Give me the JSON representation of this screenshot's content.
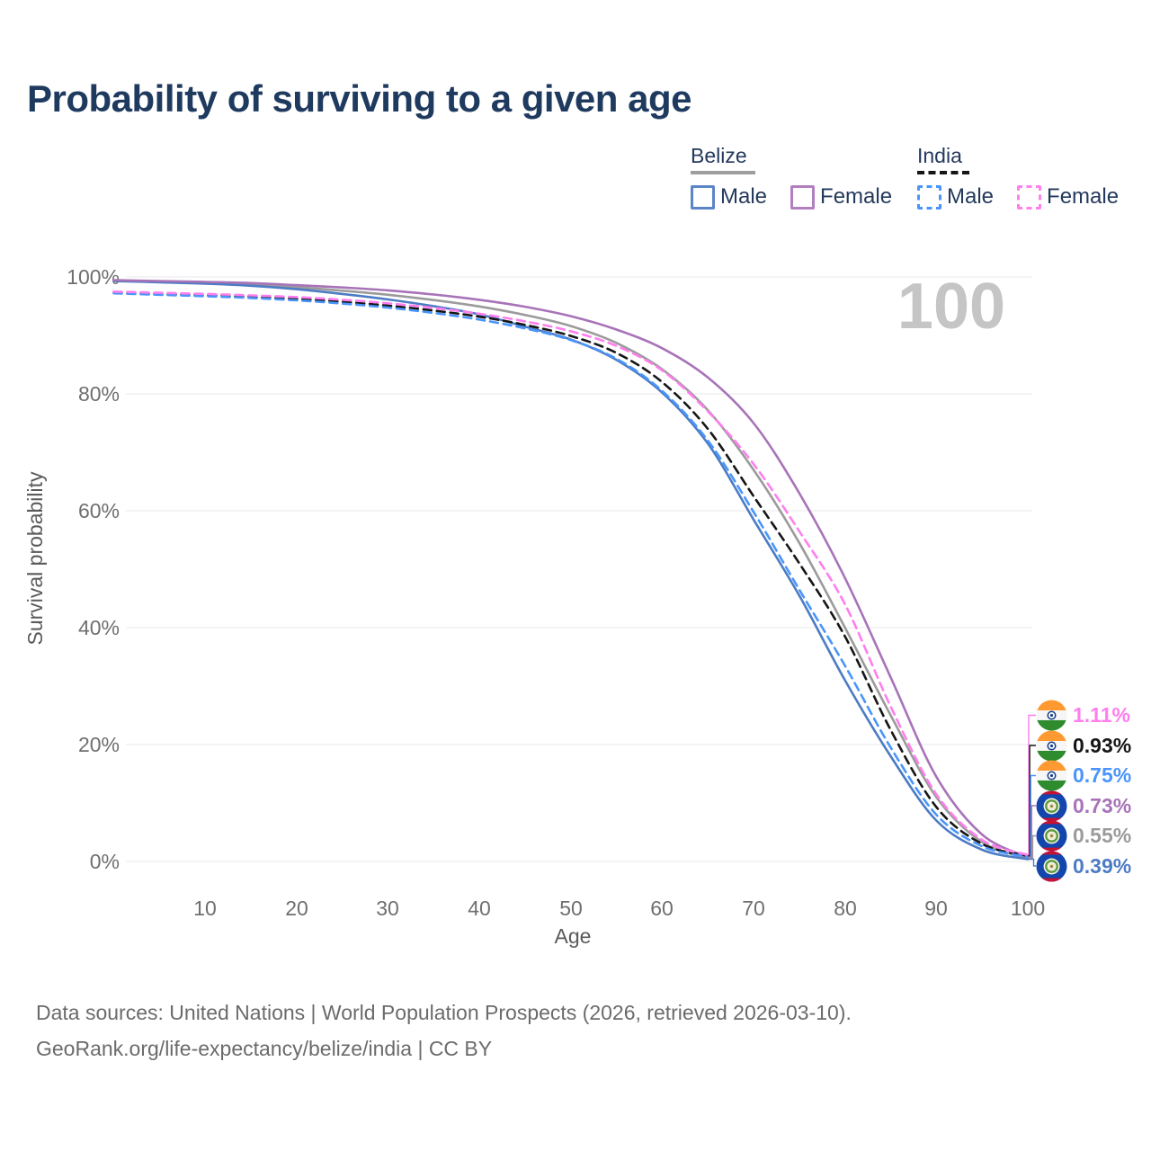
{
  "header": {
    "title": "Probability of surviving to a given age"
  },
  "legend": {
    "groups": [
      {
        "name": "Belize",
        "underline_color": "#9e9e9e",
        "underline_style": "solid",
        "items": [
          {
            "label": "Male",
            "color": "#4c7cc4",
            "dashed": false
          },
          {
            "label": "Female",
            "color": "#a873b8",
            "dashed": false
          }
        ]
      },
      {
        "name": "India",
        "underline_color": "#161616",
        "underline_style": "dashed",
        "items": [
          {
            "label": "Male",
            "color": "#4a95fb",
            "dashed": true
          },
          {
            "label": "Female",
            "color": "#ff80ee",
            "dashed": true
          }
        ]
      }
    ]
  },
  "watermark": "100",
  "axes": {
    "y_title": "Survival probability",
    "x_title": "Age",
    "y_ticks": [
      "100%",
      "80%",
      "60%",
      "40%",
      "20%",
      "0%"
    ],
    "x_ticks": [
      "10",
      "20",
      "30",
      "40",
      "50",
      "60",
      "70",
      "80",
      "90",
      "100"
    ]
  },
  "end_labels": [
    {
      "country": "India",
      "flag": "india",
      "series": "India Female",
      "value": "1.11%",
      "color": "#ff7eee"
    },
    {
      "country": "India",
      "flag": "india",
      "series": "India Total",
      "value": "0.93%",
      "color": "#161616"
    },
    {
      "country": "India",
      "flag": "india",
      "series": "India Male",
      "value": "0.75%",
      "color": "#4a95fb"
    },
    {
      "country": "Belize",
      "flag": "belize",
      "series": "Belize Female",
      "value": "0.73%",
      "color": "#a873b8"
    },
    {
      "country": "Belize",
      "flag": "belize",
      "series": "Belize Total",
      "value": "0.55%",
      "color": "#9b9b9b"
    },
    {
      "country": "Belize",
      "flag": "belize",
      "series": "Belize Male",
      "value": "0.39%",
      "color": "#4c7cc4"
    }
  ],
  "footer": {
    "line1": "Data sources: United Nations | World Population Prospects (2026, retrieved 2026-03-10).",
    "line2": "GeoRank.org/life-expectancy/belize/india | CC BY"
  },
  "chart_data": {
    "type": "line",
    "title": "Probability of surviving to a given age",
    "xlabel": "Age",
    "ylabel": "Survival probability",
    "xlim": [
      0,
      100
    ],
    "ylim": [
      0,
      100
    ],
    "y_unit": "%",
    "grid": "horizontal",
    "legend_position": "top-right",
    "x": [
      0,
      5,
      10,
      15,
      20,
      25,
      30,
      35,
      40,
      45,
      50,
      55,
      60,
      65,
      70,
      75,
      80,
      85,
      90,
      95,
      100
    ],
    "series": [
      {
        "name": "Belize Total",
        "country": "Belize",
        "color": "#9b9b9b",
        "dash": false,
        "values": [
          99.37,
          99.2,
          99.0,
          98.7,
          98.25,
          97.65,
          96.95,
          96.05,
          94.95,
          93.5,
          91.6,
          88.7,
          84.2,
          77.2,
          67.0,
          54.5,
          40.0,
          25.0,
          11.0,
          3.3,
          0.55
        ]
      },
      {
        "name": "Belize Male",
        "country": "Belize",
        "color": "#4c7cc4",
        "dash": false,
        "values": [
          99.3,
          99.1,
          98.85,
          98.5,
          97.9,
          97.1,
          96.15,
          95.0,
          93.6,
          91.5,
          89.3,
          85.8,
          80.2,
          71.5,
          58.5,
          45.5,
          31.0,
          18.0,
          7.0,
          2.0,
          0.39
        ]
      },
      {
        "name": "Belize Female",
        "country": "Belize",
        "color": "#a873b8",
        "dash": false,
        "values": [
          99.45,
          99.3,
          99.15,
          98.95,
          98.6,
          98.2,
          97.7,
          97.0,
          96.1,
          94.9,
          93.3,
          91.0,
          87.8,
          82.8,
          75.0,
          63.0,
          48.5,
          31.5,
          14.5,
          4.6,
          0.73
        ]
      },
      {
        "name": "India Total",
        "country": "India",
        "color": "#161616",
        "dash": true,
        "values": [
          97.35,
          97.1,
          96.9,
          96.6,
          96.25,
          95.75,
          95.1,
          94.25,
          93.2,
          91.8,
          89.9,
          87.0,
          82.0,
          74.0,
          62.5,
          51.0,
          38.5,
          22.5,
          9.3,
          3.0,
          0.93
        ]
      },
      {
        "name": "India Male",
        "country": "India",
        "color": "#4a95fb",
        "dash": true,
        "values": [
          97.2,
          96.95,
          96.7,
          96.4,
          96.0,
          95.45,
          94.75,
          93.85,
          92.7,
          91.2,
          89.2,
          86.0,
          80.5,
          72.0,
          59.8,
          46.5,
          33.5,
          19.5,
          8.0,
          2.6,
          0.75
        ]
      },
      {
        "name": "India Female",
        "country": "India",
        "color": "#ff7eee",
        "dash": true,
        "values": [
          97.5,
          97.3,
          97.1,
          96.85,
          96.55,
          96.1,
          95.5,
          94.7,
          93.7,
          92.4,
          90.7,
          88.2,
          84.0,
          77.0,
          68.0,
          56.5,
          44.0,
          26.5,
          11.5,
          3.7,
          1.11
        ]
      }
    ]
  }
}
